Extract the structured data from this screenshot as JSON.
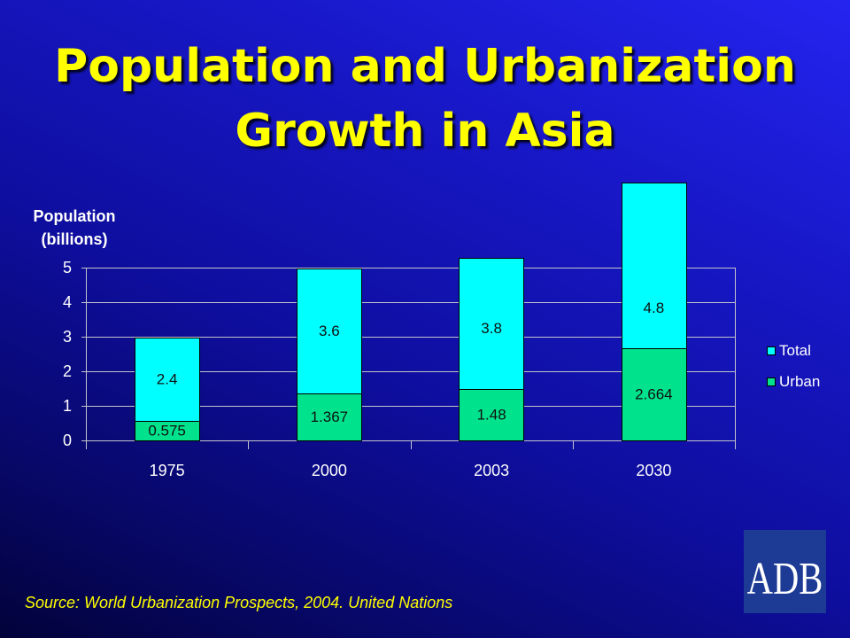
{
  "chart_data": {
    "type": "bar",
    "stacked": true,
    "title": "Population and Urbanization Growth in Asia",
    "ylabel": "Population (billions)",
    "categories": [
      "1975",
      "2000",
      "2003",
      "2030"
    ],
    "series": [
      {
        "name": "Urban",
        "values": [
          0.575,
          1.367,
          1.48,
          2.664
        ],
        "color": "#00e38c"
      },
      {
        "name": "Total",
        "values": [
          2.4,
          3.6,
          3.8,
          4.8
        ],
        "color": "#00ffff"
      }
    ],
    "ylim": [
      0,
      5
    ],
    "yticks": [
      0,
      1,
      2,
      3,
      4,
      5
    ],
    "grid": true,
    "data_labels": true,
    "legend_placement": "right"
  },
  "slide": {
    "source": "Source: World Urbanization Prospects, 2004. United Nations",
    "accent_color": "#ffff00"
  },
  "logo": {
    "text": "ADB",
    "background_color": "#1d3b95"
  }
}
